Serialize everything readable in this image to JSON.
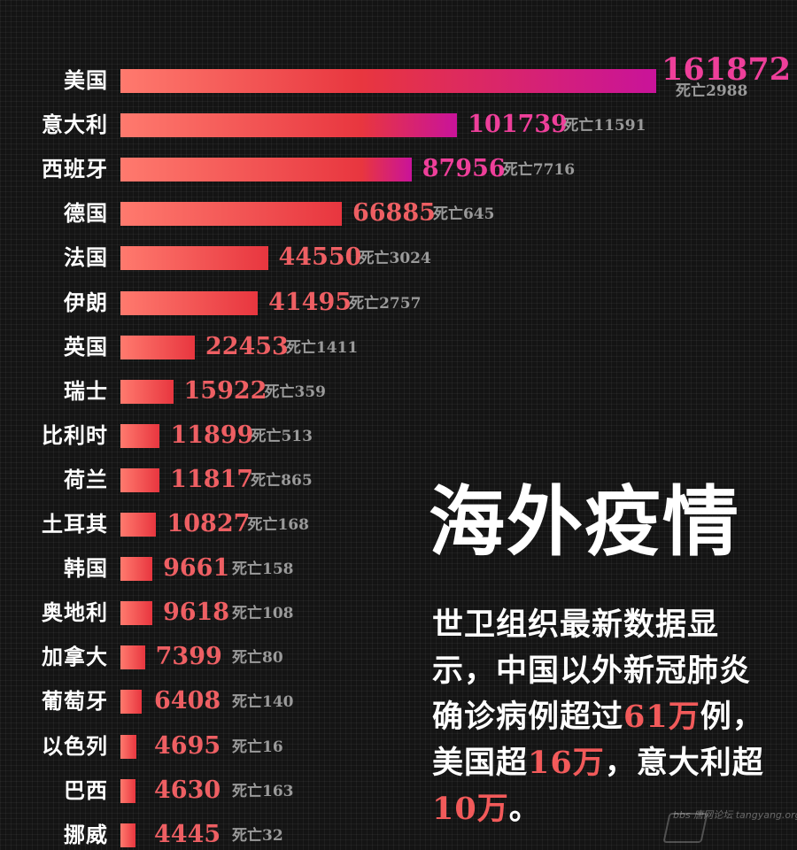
{
  "chart_data": {
    "type": "bar",
    "orientation": "horizontal",
    "title": "海外疫情",
    "categories": [
      "美国",
      "意大利",
      "西班牙",
      "德国",
      "法国",
      "伊朗",
      "英国",
      "瑞士",
      "比利时",
      "荷兰",
      "土耳其",
      "韩国",
      "奥地利",
      "加拿大",
      "葡萄牙",
      "以色列",
      "巴西",
      "挪威"
    ],
    "values": [
      161872,
      101739,
      87956,
      66885,
      44550,
      41495,
      22453,
      15922,
      11899,
      11817,
      10827,
      9661,
      9618,
      7399,
      6408,
      4695,
      4630,
      4445
    ],
    "deaths": [
      2988,
      11591,
      7716,
      645,
      3024,
      2757,
      1411,
      359,
      513,
      865,
      168,
      158,
      108,
      80,
      140,
      16,
      163,
      32
    ],
    "death_prefix": "死亡",
    "colors": {
      "bar_start": "#ff7a6e",
      "bar_mid": "#e8363f",
      "bar_end": "#c9139a",
      "value_high": "#ee3f9a",
      "value_low": "#ee5f63"
    }
  },
  "headline": "海外疫情",
  "description": [
    {
      "text": "世卫组织最新数据显示，中国以外新冠肺炎确诊病例超过",
      "hl": false
    },
    {
      "text": "61万",
      "hl": true
    },
    {
      "text": "例，美国超",
      "hl": false
    },
    {
      "text": "16万",
      "hl": true
    },
    {
      "text": "，意大利超",
      "hl": false
    },
    {
      "text": "10万",
      "hl": true
    },
    {
      "text": "。",
      "hl": false
    }
  ],
  "watermark": "bbs 唐网论坛 tangyang.org"
}
